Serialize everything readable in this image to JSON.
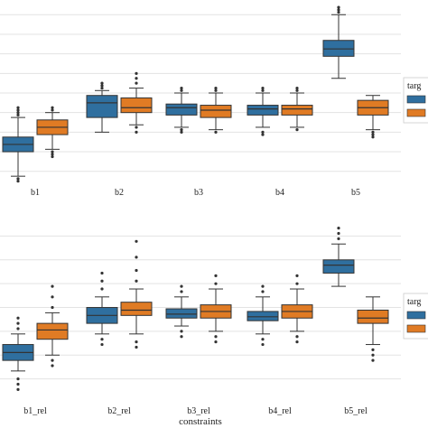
{
  "colors": {
    "series_1": "#2f6f9f",
    "series_2": "#e07b24",
    "grid": "#e3e3e3",
    "line": "#333333"
  },
  "chart_data": [
    {
      "type": "boxplot",
      "xlabel": "",
      "legend_title": "targ",
      "legend_placement": "right",
      "grid": true,
      "categories": [
        "b1",
        "b2",
        "b3",
        "b4",
        "b5"
      ],
      "series": [
        {
          "values": [
            {
              "q1": 1.4,
              "median": 1.7,
              "q3": 2.0,
              "whislo": 0.4,
              "whishi": 2.8,
              "fliers": [
                0.2,
                0.3,
                2.9,
                3.0,
                3.1,
                3.2
              ]
            },
            {
              "q1": 2.8,
              "median": 3.4,
              "q3": 3.7,
              "whislo": 2.2,
              "whishi": 3.9,
              "fliers": [
                4.0,
                4.1,
                4.2
              ]
            },
            {
              "q1": 2.9,
              "median": 3.2,
              "q3": 3.35,
              "whislo": 2.4,
              "whishi": 3.8,
              "fliers": [
                2.3,
                2.2,
                3.9,
                4.0
              ]
            },
            {
              "q1": 2.9,
              "median": 3.15,
              "q3": 3.3,
              "whislo": 2.4,
              "whishi": 3.8,
              "fliers": [
                2.2,
                2.1,
                3.9,
                4.0
              ]
            },
            {
              "q1": 5.3,
              "median": 5.6,
              "q3": 5.95,
              "whislo": 4.4,
              "whishi": 7.0,
              "fliers": [
                7.1,
                7.2,
                7.3
              ]
            }
          ]
        },
        {
          "values": [
            {
              "q1": 2.1,
              "median": 2.4,
              "q3": 2.7,
              "whislo": 1.5,
              "whishi": 3.0,
              "fliers": [
                1.4,
                1.3,
                1.2,
                3.1,
                3.2
              ]
            },
            {
              "q1": 3.0,
              "median": 3.2,
              "q3": 3.6,
              "whislo": 2.5,
              "whishi": 4.0,
              "fliers": [
                2.4,
                2.2,
                4.2,
                4.4,
                4.6
              ]
            },
            {
              "q1": 2.8,
              "median": 3.1,
              "q3": 3.3,
              "whislo": 2.3,
              "whishi": 3.8,
              "fliers": [
                2.2,
                3.9,
                4.0
              ]
            },
            {
              "q1": 2.9,
              "median": 3.15,
              "q3": 3.3,
              "whislo": 2.4,
              "whishi": 3.8,
              "fliers": [
                2.3,
                3.9,
                4.0
              ]
            },
            {
              "q1": 2.9,
              "median": 3.2,
              "q3": 3.5,
              "whislo": 2.3,
              "whishi": 3.7,
              "fliers": [
                2.2,
                2.1,
                2.0
              ]
            }
          ]
        }
      ]
    },
    {
      "type": "boxplot",
      "xlabel": "constraints",
      "legend_title": "targ",
      "legend_placement": "right",
      "grid": true,
      "categories": [
        "b1_rel",
        "b2_rel",
        "b3_rel",
        "b4_rel",
        "b5_rel"
      ],
      "series": [
        {
          "values": [
            {
              "q1": 1.6,
              "median": 1.9,
              "q3": 2.2,
              "whislo": 1.2,
              "whishi": 2.6,
              "fliers": [
                0.9,
                0.7,
                0.5,
                2.8,
                3.0,
                3.2
              ]
            },
            {
              "q1": 3.0,
              "median": 3.3,
              "q3": 3.6,
              "whislo": 2.6,
              "whishi": 4.0,
              "fliers": [
                2.4,
                2.2,
                4.3,
                4.6,
                4.9
              ]
            },
            {
              "q1": 3.2,
              "median": 3.35,
              "q3": 3.55,
              "whislo": 2.9,
              "whishi": 4.0,
              "fliers": [
                2.7,
                2.5,
                4.2,
                4.4
              ]
            },
            {
              "q1": 3.1,
              "median": 3.25,
              "q3": 3.45,
              "whislo": 2.6,
              "whishi": 4.0,
              "fliers": [
                2.4,
                2.2,
                4.2,
                4.4
              ]
            },
            {
              "q1": 4.9,
              "median": 5.2,
              "q3": 5.4,
              "whislo": 4.4,
              "whishi": 6.0,
              "fliers": [
                6.2,
                6.4,
                6.6
              ]
            }
          ]
        },
        {
          "values": [
            {
              "q1": 2.4,
              "median": 2.75,
              "q3": 3.0,
              "whislo": 1.8,
              "whishi": 3.4,
              "fliers": [
                1.6,
                1.4,
                3.6,
                4.0,
                4.4
              ]
            },
            {
              "q1": 3.3,
              "median": 3.5,
              "q3": 3.8,
              "whislo": 2.6,
              "whishi": 4.3,
              "fliers": [
                2.3,
                2.1,
                4.6,
                5.0,
                5.5,
                6.1
              ]
            },
            {
              "q1": 3.2,
              "median": 3.45,
              "q3": 3.7,
              "whislo": 2.7,
              "whishi": 4.3,
              "fliers": [
                2.5,
                2.3,
                4.5,
                4.8
              ]
            },
            {
              "q1": 3.2,
              "median": 3.45,
              "q3": 3.7,
              "whislo": 2.7,
              "whishi": 4.3,
              "fliers": [
                2.5,
                2.3,
                4.5,
                4.8
              ]
            },
            {
              "q1": 3.0,
              "median": 3.2,
              "q3": 3.5,
              "whislo": 2.2,
              "whishi": 4.0,
              "fliers": [
                2.0,
                1.8,
                1.6
              ]
            }
          ]
        }
      ]
    }
  ]
}
